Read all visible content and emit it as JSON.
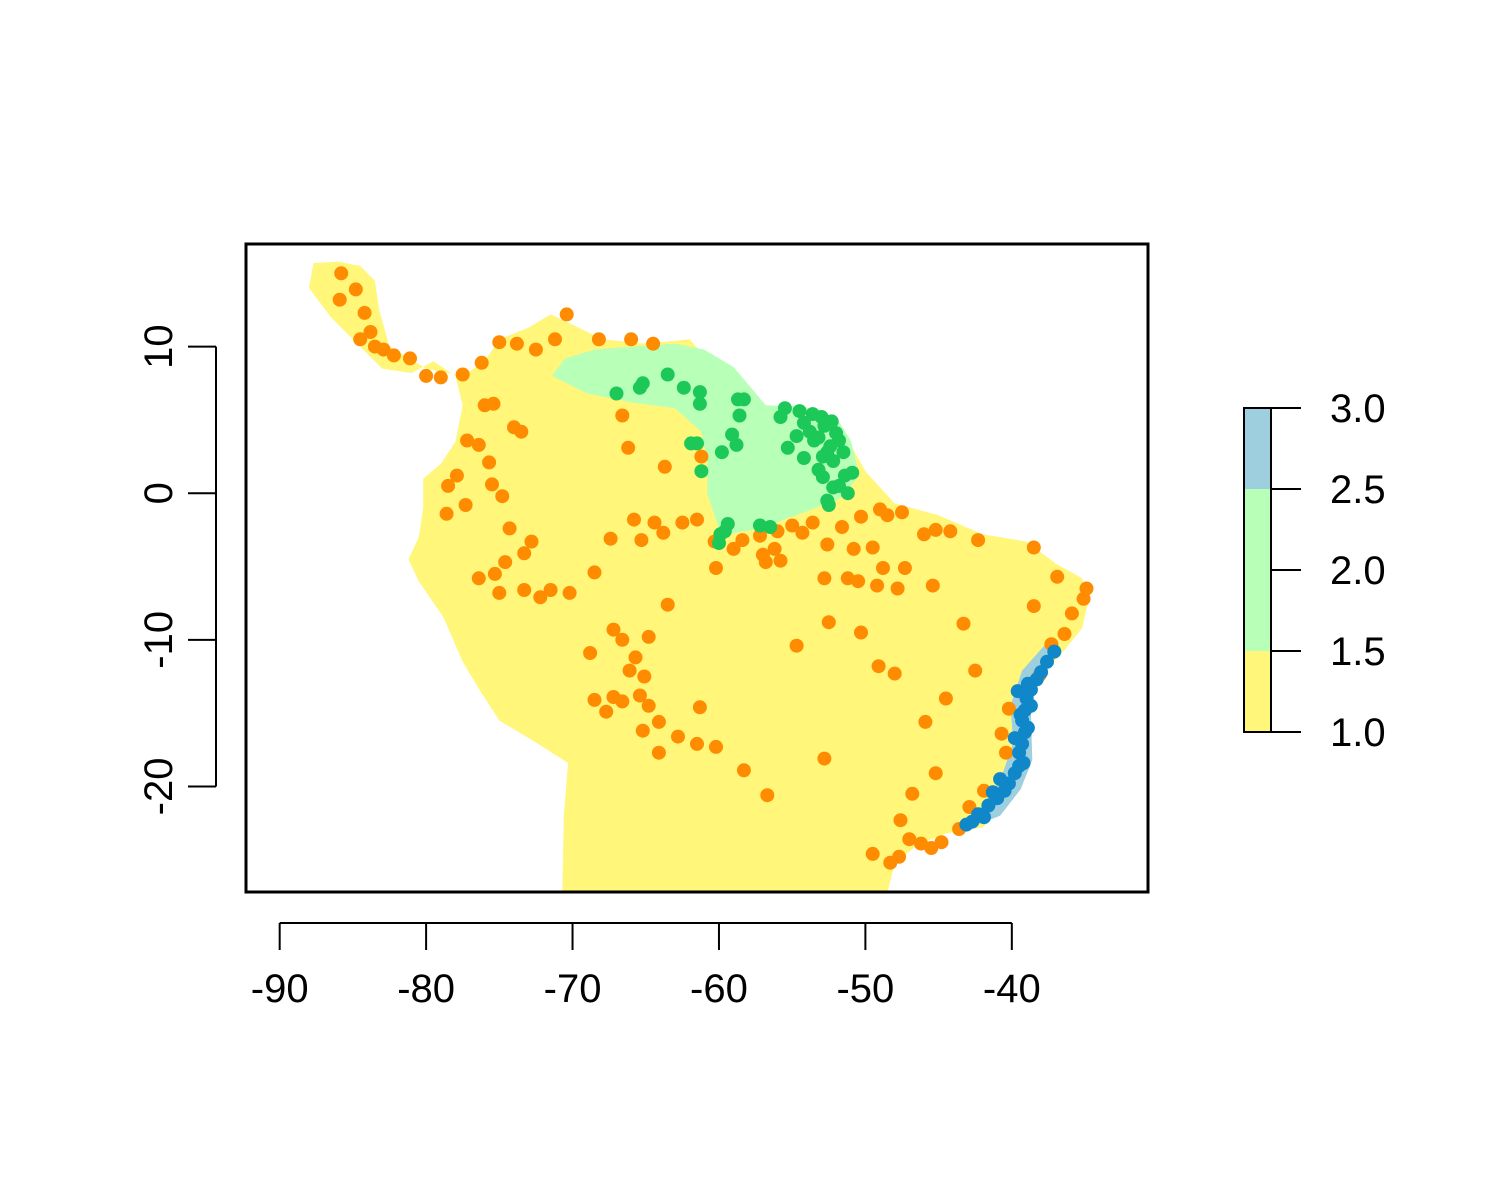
{
  "map": {
    "type": "raster-with-points",
    "xlim": [
      -92.3,
      -30.7
    ],
    "ylim": [
      -27.2,
      17.0
    ],
    "x_ticks": [
      -90,
      -80,
      -70,
      -60,
      -50,
      -40
    ],
    "y_ticks": [
      -20,
      -10,
      0,
      10
    ],
    "x_tick_labels": [
      "-90",
      "-80",
      "-70",
      "-60",
      "-50",
      "-40"
    ],
    "y_tick_labels": [
      "-20",
      "-10",
      "0",
      "10"
    ],
    "colors": {
      "class1_yellow": "#fff67a",
      "class2_green": "#b8ffb8",
      "class3_blue": "#9ecfdf",
      "points_orange": "#ff8c00",
      "points_green": "#1cc858",
      "points_blue": "#0f87c8"
    },
    "regions": {
      "yellow_outline": [
        [
          -87.7,
          15.7
        ],
        [
          -86,
          15.8
        ],
        [
          -84.5,
          15.5
        ],
        [
          -83.5,
          14.5
        ],
        [
          -83.2,
          12.5
        ],
        [
          -82.5,
          10
        ],
        [
          -80,
          8.5
        ],
        [
          -77.5,
          8
        ],
        [
          -76,
          9
        ],
        [
          -75,
          10.5
        ],
        [
          -73,
          11.3
        ],
        [
          -71.5,
          12.2
        ],
        [
          -70,
          11.5
        ],
        [
          -68,
          10.5
        ],
        [
          -65,
          10.2
        ],
        [
          -62,
          10.5
        ],
        [
          -60,
          8.2
        ],
        [
          -57,
          6
        ],
        [
          -54,
          5.8
        ],
        [
          -51.5,
          4.2
        ],
        [
          -50,
          1.5
        ],
        [
          -48,
          -0.7
        ],
        [
          -45,
          -1.5
        ],
        [
          -42,
          -2.8
        ],
        [
          -39,
          -3.3
        ],
        [
          -37,
          -4.8
        ],
        [
          -35.2,
          -5.8
        ],
        [
          -34.8,
          -7.5
        ],
        [
          -35.2,
          -9.2
        ],
        [
          -36.5,
          -10.8
        ],
        [
          -38,
          -12.5
        ],
        [
          -38.8,
          -14
        ],
        [
          -39,
          -16
        ],
        [
          -39,
          -18.5
        ],
        [
          -40.1,
          -20.2
        ],
        [
          -41,
          -21.8
        ],
        [
          -42,
          -22.8
        ],
        [
          -44.5,
          -23.2
        ],
        [
          -46.5,
          -24
        ],
        [
          -48,
          -25.3
        ],
        [
          -48.5,
          -27.2
        ],
        [
          -70.7,
          -27.2
        ],
        [
          -70.6,
          -22
        ],
        [
          -70.3,
          -18.4
        ],
        [
          -72.5,
          -17
        ],
        [
          -75,
          -15.5
        ],
        [
          -76.3,
          -13.5
        ],
        [
          -77.5,
          -11.5
        ],
        [
          -78.8,
          -8.5
        ],
        [
          -80.5,
          -6
        ],
        [
          -81.2,
          -4.5
        ],
        [
          -80.5,
          -3
        ],
        [
          -80.2,
          -1
        ],
        [
          -80.2,
          1
        ],
        [
          -79,
          2
        ],
        [
          -78,
          3.5
        ],
        [
          -77.5,
          6
        ],
        [
          -78,
          8
        ],
        [
          -79.5,
          9
        ],
        [
          -81,
          8.2
        ],
        [
          -83,
          8.5
        ],
        [
          -85,
          10.5
        ],
        [
          -86.5,
          12
        ],
        [
          -88,
          14
        ],
        [
          -87.7,
          15.7
        ]
      ],
      "green_outline": [
        [
          -71.4,
          8
        ],
        [
          -70.5,
          9.2
        ],
        [
          -68.5,
          9.8
        ],
        [
          -66,
          10
        ],
        [
          -63,
          10.2
        ],
        [
          -61,
          9.8
        ],
        [
          -59,
          8.6
        ],
        [
          -56.8,
          6
        ],
        [
          -54.2,
          5.9
        ],
        [
          -52,
          5.2
        ],
        [
          -51,
          3.6
        ],
        [
          -50.4,
          1.2
        ],
        [
          -51.8,
          -0.4
        ],
        [
          -55,
          -1.6
        ],
        [
          -57.2,
          -2.4
        ],
        [
          -59.8,
          -2.9
        ],
        [
          -60.2,
          -1.8
        ],
        [
          -60.8,
          0
        ],
        [
          -60.8,
          2.2
        ],
        [
          -61.2,
          4.2
        ],
        [
          -63,
          5.8
        ],
        [
          -66,
          6.2
        ],
        [
          -69,
          6.8
        ],
        [
          -71.4,
          8
        ]
      ],
      "blue_outline": [
        [
          -37.7,
          -10.3
        ],
        [
          -36.7,
          -10.8
        ],
        [
          -38.3,
          -12.9
        ],
        [
          -38.7,
          -15
        ],
        [
          -38.6,
          -18.2
        ],
        [
          -39.4,
          -20.2
        ],
        [
          -40.8,
          -22
        ],
        [
          -43.1,
          -22.9
        ],
        [
          -43.6,
          -22.6
        ],
        [
          -42.1,
          -21.4
        ],
        [
          -40.8,
          -19.6
        ],
        [
          -39.9,
          -17
        ],
        [
          -40.1,
          -14.5
        ],
        [
          -39.3,
          -12.1
        ],
        [
          -37.7,
          -10.3
        ]
      ]
    },
    "legend": {
      "labels": [
        "3.0",
        "2.5",
        "2.0",
        "1.5",
        "1.0"
      ],
      "values": [
        3.0,
        2.5,
        2.0,
        1.5,
        1.0
      ],
      "bands": [
        {
          "from": 1.0,
          "to": 1.5,
          "color": "#fff67a"
        },
        {
          "from": 1.5,
          "to": 2.5,
          "color": "#b8ffb8"
        },
        {
          "from": 2.5,
          "to": 3.0,
          "color": "#9ecfdf"
        }
      ]
    },
    "points": {
      "orange": [
        [
          -85.8,
          15
        ],
        [
          -84.8,
          13.9
        ],
        [
          -85.9,
          13.2
        ],
        [
          -84.2,
          12.3
        ],
        [
          -83.8,
          11
        ],
        [
          -84.5,
          10.5
        ],
        [
          -83.5,
          10
        ],
        [
          -82.2,
          9.4
        ],
        [
          -82.9,
          9.8
        ],
        [
          -81.1,
          9.2
        ],
        [
          -80,
          8
        ],
        [
          -79,
          7.9
        ],
        [
          -77.5,
          8.1
        ],
        [
          -76.2,
          8.9
        ],
        [
          -75,
          10.3
        ],
        [
          -73.8,
          10.2
        ],
        [
          -72.5,
          9.8
        ],
        [
          -71.2,
          10.5
        ],
        [
          -70.4,
          12.2
        ],
        [
          -68.2,
          10.5
        ],
        [
          -66,
          10.5
        ],
        [
          -64.5,
          10.2
        ],
        [
          -76,
          6
        ],
        [
          -75.4,
          6.1
        ],
        [
          -74,
          4.5
        ],
        [
          -73.5,
          4.2
        ],
        [
          -77.2,
          3.6
        ],
        [
          -76.4,
          3.3
        ],
        [
          -75.7,
          2.1
        ],
        [
          -77.9,
          1.2
        ],
        [
          -78.5,
          0.5
        ],
        [
          -78.6,
          -1.4
        ],
        [
          -77.3,
          -0.8
        ],
        [
          -75.5,
          0.6
        ],
        [
          -74.8,
          -0.2
        ],
        [
          -74.3,
          -2.4
        ],
        [
          -72.8,
          -3.3
        ],
        [
          -74.6,
          -4.7
        ],
        [
          -73.3,
          -4.1
        ],
        [
          -75.3,
          -5.5
        ],
        [
          -76.4,
          -5.8
        ],
        [
          -75,
          -6.8
        ],
        [
          -73.3,
          -6.6
        ],
        [
          -72.2,
          -7.1
        ],
        [
          -71.5,
          -6.6
        ],
        [
          -70.2,
          -6.8
        ],
        [
          -68.5,
          -5.4
        ],
        [
          -67.4,
          -3.1
        ],
        [
          -65.3,
          -3.2
        ],
        [
          -63.8,
          -2.7
        ],
        [
          -64.4,
          -2
        ],
        [
          -65.8,
          -1.8
        ],
        [
          -62.5,
          -2
        ],
        [
          -61.5,
          -1.8
        ],
        [
          -60.3,
          -3.3
        ],
        [
          -59,
          -3.8
        ],
        [
          -58.4,
          -3.2
        ],
        [
          -57.2,
          -2.9
        ],
        [
          -56,
          -2.6
        ],
        [
          -55,
          -2.2
        ],
        [
          -53.6,
          -2
        ],
        [
          -52.6,
          -3.5
        ],
        [
          -51.6,
          -2.3
        ],
        [
          -50.3,
          -1.6
        ],
        [
          -49,
          -1.1
        ],
        [
          -48.5,
          -1.5
        ],
        [
          -47.5,
          -1.3
        ],
        [
          -46,
          -2.8
        ],
        [
          -45.2,
          -2.5
        ],
        [
          -44.2,
          -2.6
        ],
        [
          -42.3,
          -3.2
        ],
        [
          -38.5,
          -3.7
        ],
        [
          -52.8,
          -5.8
        ],
        [
          -50.5,
          -6
        ],
        [
          -49.2,
          -6.3
        ],
        [
          -47.8,
          -6.5
        ],
        [
          -47.3,
          -5.1
        ],
        [
          -45.4,
          -6.3
        ],
        [
          -48.8,
          -5.1
        ],
        [
          -51.2,
          -5.8
        ],
        [
          -50.8,
          -3.8
        ],
        [
          -49.5,
          -3.7
        ],
        [
          -55.8,
          -4.6
        ],
        [
          -57,
          -4.2
        ],
        [
          -68.8,
          -10.9
        ],
        [
          -67.2,
          -9.3
        ],
        [
          -66.6,
          -10
        ],
        [
          -65.7,
          -11.2
        ],
        [
          -64.8,
          -9.8
        ],
        [
          -63.5,
          -7.6
        ],
        [
          -66.1,
          -12.1
        ],
        [
          -65.1,
          -12.5
        ],
        [
          -67.2,
          -13.9
        ],
        [
          -68.5,
          -14.1
        ],
        [
          -67.7,
          -14.9
        ],
        [
          -66.6,
          -14.2
        ],
        [
          -65.4,
          -13.8
        ],
        [
          -64.8,
          -14.5
        ],
        [
          -64.1,
          -15.6
        ],
        [
          -65.2,
          -16.2
        ],
        [
          -64.1,
          -17.7
        ],
        [
          -62.8,
          -16.6
        ],
        [
          -61.5,
          -17.1
        ],
        [
          -60.2,
          -17.3
        ],
        [
          -61.3,
          -14.6
        ],
        [
          -58.3,
          -18.9
        ],
        [
          -56.7,
          -20.6
        ],
        [
          -52.8,
          -18.1
        ],
        [
          -54.7,
          -10.4
        ],
        [
          -52.5,
          -8.8
        ],
        [
          -50.3,
          -9.5
        ],
        [
          -49.1,
          -11.8
        ],
        [
          -48,
          -12.3
        ],
        [
          -43.3,
          -8.9
        ],
        [
          -42.5,
          -12.1
        ],
        [
          -44.5,
          -14
        ],
        [
          -45.9,
          -15.6
        ],
        [
          -45.2,
          -19.1
        ],
        [
          -46.8,
          -20.5
        ],
        [
          -47.6,
          -22.3
        ],
        [
          -47,
          -23.6
        ],
        [
          -46.2,
          -23.9
        ],
        [
          -45.5,
          -24.2
        ],
        [
          -44.8,
          -23.8
        ],
        [
          -43.6,
          -22.9
        ],
        [
          -42.9,
          -21.4
        ],
        [
          -41.9,
          -20.3
        ],
        [
          -40.4,
          -17.7
        ],
        [
          -40.7,
          -16.4
        ],
        [
          -40.2,
          -14.7
        ],
        [
          -38.1,
          -12.4
        ],
        [
          -37.3,
          -10.3
        ],
        [
          -36.4,
          -9.6
        ],
        [
          -35.9,
          -8.2
        ],
        [
          -35.1,
          -7.2
        ],
        [
          -34.9,
          -6.5
        ],
        [
          -36.9,
          -5.7
        ],
        [
          -38.5,
          -7.7
        ],
        [
          -47.7,
          -24.8
        ],
        [
          -48.3,
          -25.2
        ],
        [
          -49.5,
          -24.6
        ],
        [
          -66.6,
          5.3
        ],
        [
          -66.2,
          3.1
        ],
        [
          -63.7,
          1.8
        ],
        [
          -61.2,
          2.5
        ],
        [
          -60.2,
          -5.1
        ],
        [
          -56.8,
          -4.7
        ],
        [
          -56.2,
          -3.8
        ],
        [
          -54.3,
          -2.7
        ]
      ],
      "green": [
        [
          -67,
          6.8
        ],
        [
          -65.4,
          7.2
        ],
        [
          -65.2,
          7.5
        ],
        [
          -63.5,
          8.1
        ],
        [
          -62.4,
          7.2
        ],
        [
          -61.3,
          6.9
        ],
        [
          -61.3,
          6.1
        ],
        [
          -58.7,
          6.4
        ],
        [
          -58.3,
          6.4
        ],
        [
          -58.6,
          5.3
        ],
        [
          -59.1,
          4
        ],
        [
          -59.8,
          2.8
        ],
        [
          -58.8,
          3.3
        ],
        [
          -61.5,
          3.4
        ],
        [
          -61.9,
          3.4
        ],
        [
          -61.2,
          1.5
        ],
        [
          -55.8,
          5.2
        ],
        [
          -55.5,
          5.8
        ],
        [
          -54.5,
          5.6
        ],
        [
          -54.2,
          4.8
        ],
        [
          -53.6,
          5.4
        ],
        [
          -53,
          5.2
        ],
        [
          -52.3,
          4.9
        ],
        [
          -52,
          4.1
        ],
        [
          -51.8,
          3.6
        ],
        [
          -52.4,
          3.2
        ],
        [
          -52.9,
          2.5
        ],
        [
          -52.6,
          2.8
        ],
        [
          -53.2,
          3.8
        ],
        [
          -53.8,
          4.2
        ],
        [
          -54.7,
          3.9
        ],
        [
          -55.3,
          3.1
        ],
        [
          -54.2,
          2.4
        ],
        [
          -53.2,
          1.6
        ],
        [
          -52.2,
          2.2
        ],
        [
          -51.5,
          2.8
        ],
        [
          -51.4,
          1.2
        ],
        [
          -50.9,
          1.4
        ],
        [
          -51.8,
          0.5
        ],
        [
          -51.2,
          0
        ],
        [
          -52.6,
          -0.5
        ],
        [
          -52.5,
          -0.8
        ],
        [
          -52.2,
          0.4
        ],
        [
          -56.5,
          -2.3
        ],
        [
          -57.2,
          -2.2
        ],
        [
          -59.4,
          -2.1
        ],
        [
          -59.9,
          -2.8
        ],
        [
          -60,
          -3.4
        ],
        [
          -59.6,
          -2.6
        ],
        [
          -52.8,
          4.6
        ],
        [
          -53.5,
          3.6
        ],
        [
          -52.9,
          1.1
        ]
      ],
      "blue": [
        [
          -37.1,
          -10.8
        ],
        [
          -37.6,
          -11.5
        ],
        [
          -38,
          -12.2
        ],
        [
          -38.3,
          -12.7
        ],
        [
          -38.7,
          -13.4
        ],
        [
          -39,
          -14
        ],
        [
          -39.1,
          -14.8
        ],
        [
          -39.3,
          -15.5
        ],
        [
          -39.1,
          -16.3
        ],
        [
          -39.3,
          -17.1
        ],
        [
          -39.5,
          -17.7
        ],
        [
          -39.2,
          -18.4
        ],
        [
          -39.8,
          -19.1
        ],
        [
          -40.2,
          -19.8
        ],
        [
          -40.5,
          -20.3
        ],
        [
          -41,
          -20.8
        ],
        [
          -41.6,
          -21.3
        ],
        [
          -42.3,
          -21.9
        ],
        [
          -42.7,
          -22.4
        ],
        [
          -43.1,
          -22.6
        ],
        [
          -38.7,
          -14.5
        ],
        [
          -39.4,
          -15.1
        ],
        [
          -39.8,
          -16.7
        ],
        [
          -38.9,
          -16
        ],
        [
          -39.6,
          -13.5
        ],
        [
          -40.8,
          -19.5
        ],
        [
          -41.9,
          -22.1
        ],
        [
          -41.3,
          -20.4
        ],
        [
          -39.5,
          -18.6
        ],
        [
          -38.9,
          -13
        ]
      ]
    }
  }
}
